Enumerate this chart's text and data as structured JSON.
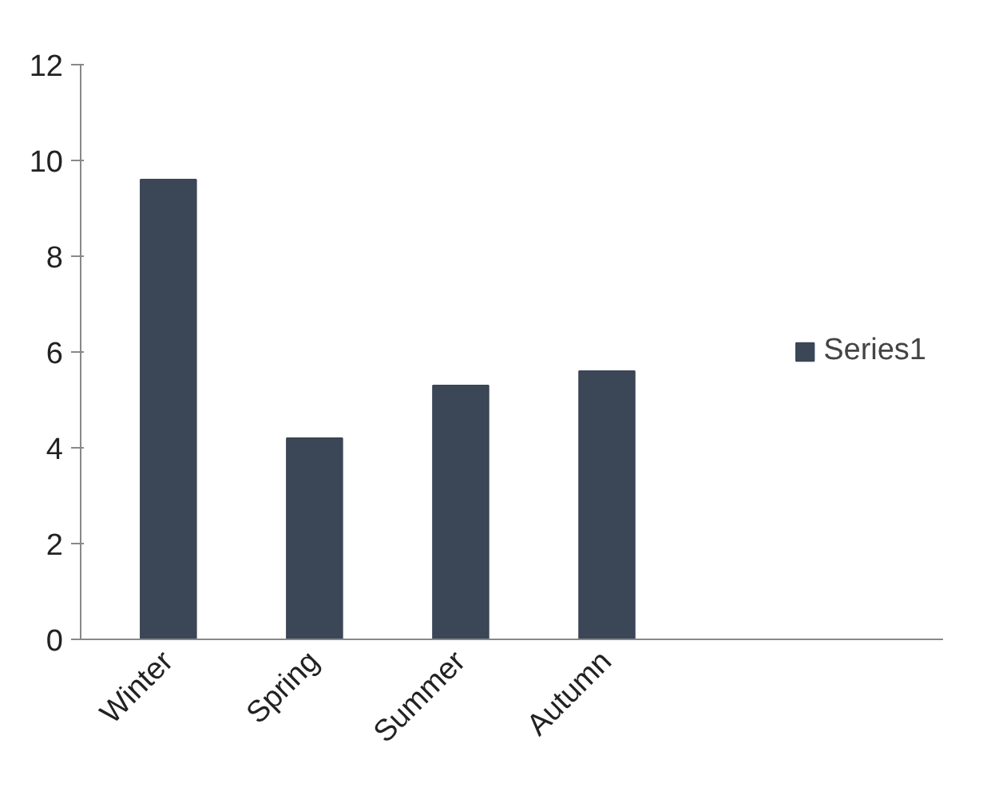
{
  "chart_data": {
    "type": "bar",
    "categories": [
      "Winter",
      "Spring",
      "Summer",
      "Autumn"
    ],
    "series": [
      {
        "name": "Series1",
        "color": "#3b4656",
        "values": [
          9.6,
          4.2,
          5.3,
          5.6
        ]
      }
    ],
    "ylim": [
      0,
      12
    ],
    "yticks": [
      0,
      2,
      4,
      6,
      8,
      10,
      12
    ],
    "grid": false,
    "legend": "right"
  }
}
